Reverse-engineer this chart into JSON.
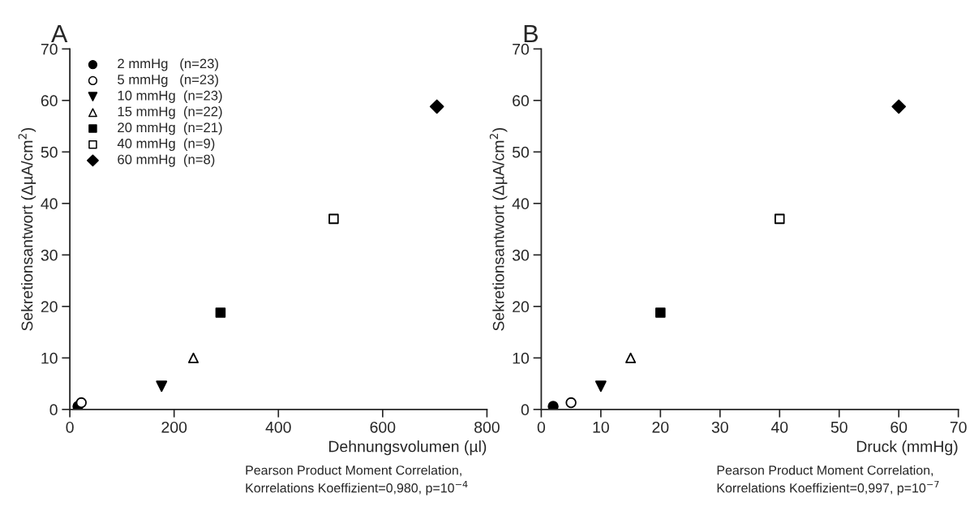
{
  "chart_data": [
    {
      "type": "scatter",
      "title": "A",
      "xlabel": "Dehnungsvolumen (µl)",
      "ylabel": "Sekretionsantwort (ΔµA/cm$^{2}$)",
      "xlim": [
        0,
        800
      ],
      "xticks": [
        0,
        200,
        400,
        600,
        800
      ],
      "ylim": [
        0,
        70
      ],
      "yticks": [
        0,
        10,
        20,
        30,
        40,
        50,
        60,
        70
      ],
      "legend": "top left",
      "grid": false,
      "annotations": [
        "Pearson Product Moment Correlation,\nKorrelations Koeffizient=0,980, p=10$^{−4}$"
      ],
      "series": [
        {
          "name": "2 mmHg   (n=23)",
          "color": "#000000",
          "marker": "circle",
          "x": [
            15.5
          ],
          "values": [
            0.6
          ]
        },
        {
          "name": "5 mmHg   (n=23)",
          "color": "#ffffff",
          "marker": "circle",
          "x": [
            22
          ],
          "values": [
            1.3
          ]
        },
        {
          "name": "10 mmHg  (n=23)",
          "color": "#000000",
          "marker": "triangle_down",
          "x": [
            176
          ],
          "values": [
            4.5
          ]
        },
        {
          "name": "15 mmHg  (n=22)",
          "color": "#ffffff",
          "marker": "triangle",
          "x": [
            237
          ],
          "values": [
            10
          ]
        },
        {
          "name": "20 mmHg  (n=21)",
          "color": "#000000",
          "marker": "square",
          "x": [
            289
          ],
          "values": [
            18.8
          ]
        },
        {
          "name": "40 mmHg  (n=9)",
          "color": "#ffffff",
          "marker": "square",
          "x": [
            506
          ],
          "values": [
            37
          ]
        },
        {
          "name": "60 mmHg  (n=8)",
          "color": "#000000",
          "marker": "diamond",
          "x": [
            704
          ],
          "values": [
            58.8
          ]
        }
      ]
    },
    {
      "type": "scatter",
      "title": "B",
      "xlabel": "Druck (mmHg)",
      "ylabel": "Sekretionsantwort (ΔµA/cm$^{2}$)",
      "xlim": [
        0,
        70
      ],
      "xticks": [
        0,
        10,
        20,
        30,
        40,
        50,
        60,
        70
      ],
      "ylim": [
        0,
        70
      ],
      "yticks": [
        0,
        10,
        20,
        30,
        40,
        50,
        60,
        70
      ],
      "grid": false,
      "annotations": [
        "Pearson Product Moment Correlation,\nKorrelations Koeffizient=0,997, p=10$^{−7}$"
      ],
      "series": [
        {
          "color": "#000000",
          "marker": "circle",
          "x": [
            2
          ],
          "values": [
            0.6
          ]
        },
        {
          "color": "#ffffff",
          "marker": "circle",
          "x": [
            5
          ],
          "values": [
            1.3
          ]
        },
        {
          "color": "#000000",
          "marker": "triangle_down",
          "x": [
            10
          ],
          "values": [
            4.5
          ]
        },
        {
          "color": "#ffffff",
          "marker": "triangle",
          "x": [
            15
          ],
          "values": [
            10
          ]
        },
        {
          "color": "#000000",
          "marker": "square",
          "x": [
            20
          ],
          "values": [
            18.8
          ]
        },
        {
          "color": "#ffffff",
          "marker": "square",
          "x": [
            40
          ],
          "values": [
            37
          ]
        },
        {
          "color": "#000000",
          "marker": "diamond",
          "x": [
            60
          ],
          "values": [
            58.8
          ]
        }
      ]
    }
  ]
}
